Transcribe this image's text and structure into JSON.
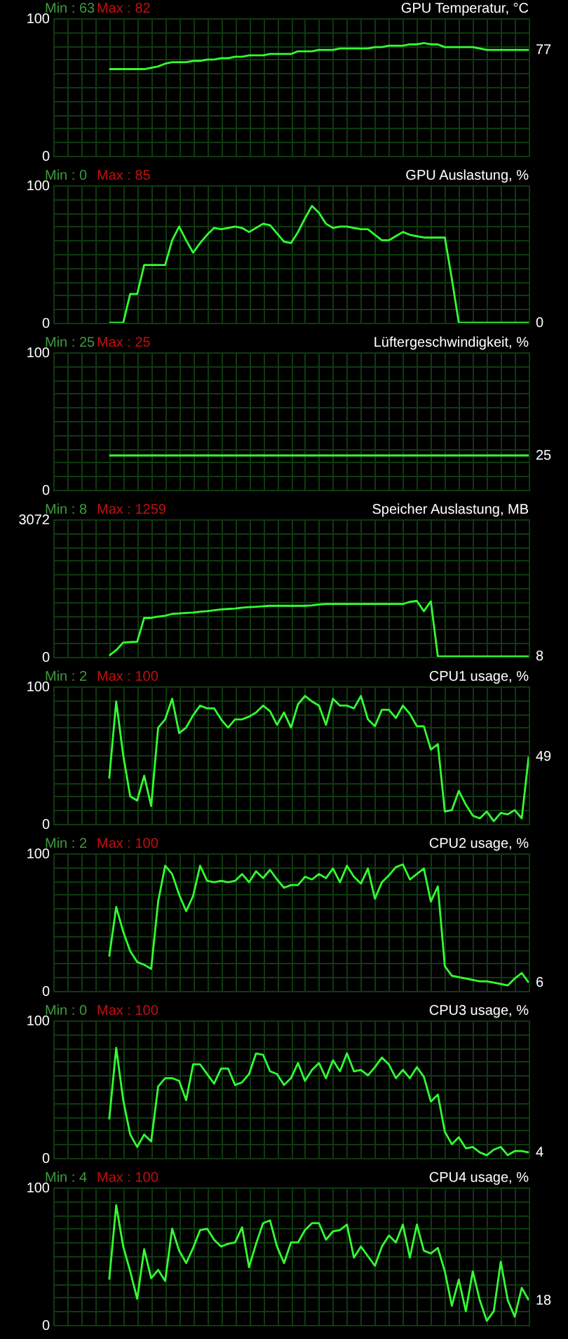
{
  "chart_data": [
    {
      "type": "line",
      "title": "GPU Temperatur, °C",
      "annotations": [
        "Min : 63",
        "Max : 82",
        "77"
      ],
      "tick_labels": "y",
      "grid": true,
      "ylim": [
        0,
        100
      ],
      "yticks": [
        0,
        {
          "value": 10,
          "label": null
        },
        {
          "value": 20,
          "label": null
        },
        {
          "value": 30,
          "label": null
        },
        {
          "value": 40,
          "label": null
        },
        {
          "value": 50,
          "label": null
        },
        {
          "value": 60,
          "label": null
        },
        {
          "value": 70,
          "label": null
        },
        {
          "value": 80,
          "label": null
        },
        {
          "value": 90,
          "label": null
        },
        100
      ],
      "categories": [
        null,
        null,
        null,
        null,
        null,
        null,
        null,
        null,
        null,
        null,
        null,
        null,
        null,
        null,
        null,
        null,
        null,
        null,
        null,
        null,
        null,
        null,
        null,
        null,
        null,
        null,
        null,
        null,
        null,
        null,
        null,
        null,
        null,
        null,
        null,
        null,
        null,
        null,
        null,
        null,
        null,
        null,
        null,
        null,
        null,
        null,
        null,
        null,
        null,
        null,
        null,
        null,
        null,
        null,
        null,
        null,
        null,
        null,
        null,
        null,
        null,
        null,
        null,
        null,
        null,
        null,
        null,
        null,
        null
      ],
      "series": [
        {
          "color": "#33ff33",
          "values": [
            null,
            null,
            null,
            null,
            null,
            null,
            null,
            null,
            63,
            63,
            63,
            63,
            63,
            63,
            64,
            65,
            67,
            68,
            68,
            68,
            69,
            69,
            70,
            70,
            71,
            71,
            72,
            72,
            73,
            73,
            73,
            74,
            74,
            74,
            74,
            76,
            76,
            76,
            77,
            77,
            77,
            78,
            78,
            78,
            78,
            78,
            79,
            79,
            80,
            80,
            80,
            81,
            81,
            82,
            81,
            81,
            79,
            79,
            79,
            79,
            79,
            78,
            77,
            77,
            77,
            77,
            77,
            77,
            77
          ]
        }
      ]
    },
    {
      "type": "line",
      "title": "GPU Auslastung, %",
      "annotations": [
        "Min : 0",
        "Max : 85",
        "0"
      ],
      "tick_labels": "y",
      "grid": true,
      "ylim": [
        0,
        100
      ],
      "yticks": [
        0,
        {
          "value": 10,
          "label": null
        },
        {
          "value": 20,
          "label": null
        },
        {
          "value": 30,
          "label": null
        },
        {
          "value": 40,
          "label": null
        },
        {
          "value": 50,
          "label": null
        },
        {
          "value": 60,
          "label": null
        },
        {
          "value": 70,
          "label": null
        },
        {
          "value": 80,
          "label": null
        },
        {
          "value": 90,
          "label": null
        },
        100
      ],
      "categories": [
        null,
        null,
        null,
        null,
        null,
        null,
        null,
        null,
        null,
        null,
        null,
        null,
        null,
        null,
        null,
        null,
        null,
        null,
        null,
        null,
        null,
        null,
        null,
        null,
        null,
        null,
        null,
        null,
        null,
        null,
        null,
        null,
        null,
        null,
        null,
        null,
        null,
        null,
        null,
        null,
        null,
        null,
        null,
        null,
        null,
        null,
        null,
        null,
        null,
        null,
        null,
        null,
        null,
        null,
        null,
        null,
        null,
        null,
        null,
        null,
        null,
        null,
        null,
        null,
        null,
        null,
        null,
        null,
        null
      ],
      "series": [
        {
          "color": "#33ff33",
          "values": [
            null,
            null,
            null,
            null,
            null,
            null,
            null,
            null,
            0,
            0,
            0,
            21,
            21,
            42,
            42,
            42,
            42,
            60,
            70,
            60,
            51,
            58,
            64,
            69,
            68,
            69,
            70,
            69,
            66,
            69,
            72,
            71,
            65,
            59,
            58,
            66,
            76,
            85,
            80,
            72,
            69,
            70,
            70,
            69,
            68,
            68,
            64,
            60,
            60,
            63,
            66,
            64,
            63,
            62,
            62,
            62,
            62,
            32,
            0,
            0,
            0,
            0,
            0,
            0,
            0,
            0,
            0,
            0,
            0
          ]
        }
      ]
    },
    {
      "type": "line",
      "title": "Lüftergeschwindigkeit, %",
      "annotations": [
        "Min : 25",
        "Max : 25",
        "25"
      ],
      "tick_labels": "y",
      "grid": true,
      "ylim": [
        0,
        100
      ],
      "yticks": [
        0,
        {
          "value": 10,
          "label": null
        },
        {
          "value": 20,
          "label": null
        },
        {
          "value": 30,
          "label": null
        },
        {
          "value": 40,
          "label": null
        },
        {
          "value": 50,
          "label": null
        },
        {
          "value": 60,
          "label": null
        },
        {
          "value": 70,
          "label": null
        },
        {
          "value": 80,
          "label": null
        },
        {
          "value": 90,
          "label": null
        },
        100
      ],
      "categories": [
        null,
        null,
        null,
        null,
        null,
        null,
        null,
        null,
        null,
        null,
        null,
        null,
        null,
        null,
        null,
        null,
        null,
        null,
        null,
        null,
        null,
        null,
        null,
        null,
        null,
        null,
        null,
        null,
        null,
        null,
        null,
        null,
        null,
        null,
        null,
        null,
        null,
        null,
        null,
        null,
        null,
        null,
        null,
        null,
        null,
        null,
        null,
        null,
        null,
        null,
        null,
        null,
        null,
        null,
        null,
        null,
        null,
        null,
        null,
        null,
        null,
        null,
        null,
        null,
        null,
        null,
        null,
        null,
        null
      ],
      "series": [
        {
          "color": "#33ff33",
          "values": [
            null,
            null,
            null,
            null,
            null,
            null,
            null,
            null,
            25,
            25,
            25,
            25,
            25,
            25,
            25,
            25,
            25,
            25,
            25,
            25,
            25,
            25,
            25,
            25,
            25,
            25,
            25,
            25,
            25,
            25,
            25,
            25,
            25,
            25,
            25,
            25,
            25,
            25,
            25,
            25,
            25,
            25,
            25,
            25,
            25,
            25,
            25,
            25,
            25,
            25,
            25,
            25,
            25,
            25,
            25,
            25,
            25,
            25,
            25,
            25,
            25,
            25,
            25,
            25,
            25,
            25,
            25,
            25,
            25
          ]
        }
      ]
    },
    {
      "type": "line",
      "title": "Speicher Auslastung, MB",
      "annotations": [
        "Min : 8",
        "Max : 1259",
        "8"
      ],
      "tick_labels": "y",
      "grid": true,
      "ylim": [
        0,
        3072
      ],
      "yticks": [
        0,
        {
          "value": 307.2,
          "label": null
        },
        {
          "value": 614.4,
          "label": null
        },
        {
          "value": 921.6,
          "label": null
        },
        {
          "value": 1228.8,
          "label": null
        },
        {
          "value": 1536,
          "label": null
        },
        {
          "value": 1843.2,
          "label": null
        },
        {
          "value": 2150.4,
          "label": null
        },
        {
          "value": 2457.6,
          "label": null
        },
        {
          "value": 2764.8,
          "label": null
        },
        3072
      ],
      "categories": [
        null,
        null,
        null,
        null,
        null,
        null,
        null,
        null,
        null,
        null,
        null,
        null,
        null,
        null,
        null,
        null,
        null,
        null,
        null,
        null,
        null,
        null,
        null,
        null,
        null,
        null,
        null,
        null,
        null,
        null,
        null,
        null,
        null,
        null,
        null,
        null,
        null,
        null,
        null,
        null,
        null,
        null,
        null,
        null,
        null,
        null,
        null,
        null,
        null,
        null,
        null,
        null,
        null,
        null,
        null,
        null,
        null,
        null,
        null,
        null,
        null,
        null,
        null,
        null,
        null,
        null,
        null,
        null,
        null
      ],
      "series": [
        {
          "color": "#33ff33",
          "values": [
            null,
            null,
            null,
            null,
            null,
            null,
            null,
            null,
            30,
            150,
            320,
            330,
            340,
            870,
            870,
            900,
            920,
            960,
            970,
            980,
            990,
            1010,
            1020,
            1040,
            1060,
            1070,
            1080,
            1100,
            1110,
            1120,
            1130,
            1140,
            1140,
            1140,
            1140,
            1140,
            1140,
            1150,
            1170,
            1180,
            1180,
            1180,
            1180,
            1180,
            1180,
            1180,
            1180,
            1180,
            1180,
            1180,
            1180,
            1230,
            1250,
            1020,
            1240,
            8,
            8,
            8,
            8,
            8,
            8,
            8,
            8,
            8,
            8,
            8,
            8,
            8,
            8
          ]
        }
      ]
    },
    {
      "type": "line",
      "title": "CPU1 usage, %",
      "annotations": [
        "Min : 2",
        "Max : 100",
        "49"
      ],
      "tick_labels": "y",
      "grid": true,
      "ylim": [
        0,
        100
      ],
      "yticks": [
        0,
        {
          "value": 10,
          "label": null
        },
        {
          "value": 20,
          "label": null
        },
        {
          "value": 30,
          "label": null
        },
        {
          "value": 40,
          "label": null
        },
        {
          "value": 50,
          "label": null
        },
        {
          "value": 60,
          "label": null
        },
        {
          "value": 70,
          "label": null
        },
        {
          "value": 80,
          "label": null
        },
        {
          "value": 90,
          "label": null
        },
        100
      ],
      "categories": [
        null,
        null,
        null,
        null,
        null,
        null,
        null,
        null,
        null,
        null,
        null,
        null,
        null,
        null,
        null,
        null,
        null,
        null,
        null,
        null,
        null,
        null,
        null,
        null,
        null,
        null,
        null,
        null,
        null,
        null,
        null,
        null,
        null,
        null,
        null,
        null,
        null,
        null,
        null,
        null,
        null,
        null,
        null,
        null,
        null,
        null,
        null,
        null,
        null,
        null,
        null,
        null,
        null,
        null,
        null,
        null,
        null,
        null,
        null,
        null,
        null,
        null,
        null,
        null,
        null,
        null,
        null,
        null,
        null
      ],
      "series": [
        {
          "color": "#33ff33",
          "values": [
            null,
            null,
            null,
            null,
            null,
            null,
            null,
            null,
            33,
            89,
            50,
            20,
            17,
            35,
            13,
            70,
            76,
            91,
            66,
            70,
            79,
            86,
            84,
            84,
            76,
            70,
            76,
            76,
            78,
            81,
            86,
            82,
            72,
            81,
            70,
            87,
            93,
            89,
            86,
            72,
            91,
            86,
            86,
            84,
            93,
            76,
            71,
            83,
            83,
            77,
            86,
            80,
            71,
            71,
            54,
            58,
            9,
            10,
            24,
            14,
            6,
            4,
            9,
            2,
            8,
            7,
            10,
            4,
            49
          ]
        }
      ]
    },
    {
      "type": "line",
      "title": "CPU2 usage, %",
      "annotations": [
        "Min : 2",
        "Max : 100",
        "6"
      ],
      "tick_labels": "y",
      "grid": true,
      "ylim": [
        0,
        100
      ],
      "yticks": [
        0,
        {
          "value": 10,
          "label": null
        },
        {
          "value": 20,
          "label": null
        },
        {
          "value": 30,
          "label": null
        },
        {
          "value": 40,
          "label": null
        },
        {
          "value": 50,
          "label": null
        },
        {
          "value": 60,
          "label": null
        },
        {
          "value": 70,
          "label": null
        },
        {
          "value": 80,
          "label": null
        },
        {
          "value": 90,
          "label": null
        },
        100
      ],
      "categories": [
        null,
        null,
        null,
        null,
        null,
        null,
        null,
        null,
        null,
        null,
        null,
        null,
        null,
        null,
        null,
        null,
        null,
        null,
        null,
        null,
        null,
        null,
        null,
        null,
        null,
        null,
        null,
        null,
        null,
        null,
        null,
        null,
        null,
        null,
        null,
        null,
        null,
        null,
        null,
        null,
        null,
        null,
        null,
        null,
        null,
        null,
        null,
        null,
        null,
        null,
        null,
        null,
        null,
        null,
        null,
        null,
        null,
        null,
        null,
        null,
        null,
        null,
        null,
        null,
        null,
        null,
        null,
        null,
        null
      ],
      "series": [
        {
          "color": "#33ff33",
          "values": [
            null,
            null,
            null,
            null,
            null,
            null,
            null,
            null,
            25,
            61,
            43,
            29,
            21,
            19,
            16,
            65,
            91,
            85,
            70,
            58,
            69,
            91,
            80,
            79,
            80,
            79,
            80,
            85,
            79,
            87,
            82,
            88,
            81,
            75,
            77,
            77,
            83,
            81,
            85,
            82,
            89,
            79,
            91,
            83,
            78,
            89,
            67,
            79,
            84,
            90,
            92,
            81,
            85,
            89,
            65,
            76,
            18,
            11,
            10,
            9,
            8,
            7,
            7,
            6,
            5,
            4,
            9,
            13,
            6
          ]
        }
      ]
    },
    {
      "type": "line",
      "title": "CPU3 usage, %",
      "annotations": [
        "Min : 0",
        "Max : 100",
        "4"
      ],
      "tick_labels": "y",
      "grid": true,
      "ylim": [
        0,
        100
      ],
      "yticks": [
        0,
        {
          "value": 10,
          "label": null
        },
        {
          "value": 20,
          "label": null
        },
        {
          "value": 30,
          "label": null
        },
        {
          "value": 40,
          "label": null
        },
        {
          "value": 50,
          "label": null
        },
        {
          "value": 60,
          "label": null
        },
        {
          "value": 70,
          "label": null
        },
        {
          "value": 80,
          "label": null
        },
        {
          "value": 90,
          "label": null
        },
        100
      ],
      "categories": [
        null,
        null,
        null,
        null,
        null,
        null,
        null,
        null,
        null,
        null,
        null,
        null,
        null,
        null,
        null,
        null,
        null,
        null,
        null,
        null,
        null,
        null,
        null,
        null,
        null,
        null,
        null,
        null,
        null,
        null,
        null,
        null,
        null,
        null,
        null,
        null,
        null,
        null,
        null,
        null,
        null,
        null,
        null,
        null,
        null,
        null,
        null,
        null,
        null,
        null,
        null,
        null,
        null,
        null,
        null,
        null,
        null,
        null,
        null,
        null,
        null,
        null,
        null,
        null,
        null,
        null,
        null,
        null,
        null
      ],
      "series": [
        {
          "color": "#33ff33",
          "values": [
            null,
            null,
            null,
            null,
            null,
            null,
            null,
            null,
            28,
            80,
            42,
            17,
            8,
            17,
            12,
            52,
            58,
            58,
            56,
            42,
            68,
            68,
            61,
            54,
            65,
            65,
            53,
            55,
            61,
            76,
            75,
            63,
            61,
            53,
            58,
            69,
            56,
            64,
            69,
            58,
            71,
            63,
            76,
            63,
            64,
            60,
            66,
            73,
            68,
            58,
            64,
            58,
            66,
            59,
            41,
            46,
            19,
            10,
            15,
            7,
            8,
            4,
            2,
            6,
            8,
            2,
            5,
            5,
            4
          ]
        }
      ]
    },
    {
      "type": "line",
      "title": "CPU4 usage, %",
      "annotations": [
        "Min : 4",
        "Max : 100",
        "18"
      ],
      "tick_labels": "y",
      "grid": true,
      "ylim": [
        0,
        100
      ],
      "yticks": [
        0,
        {
          "value": 10,
          "label": null
        },
        {
          "value": 20,
          "label": null
        },
        {
          "value": 30,
          "label": null
        },
        {
          "value": 40,
          "label": null
        },
        {
          "value": 50,
          "label": null
        },
        {
          "value": 60,
          "label": null
        },
        {
          "value": 70,
          "label": null
        },
        {
          "value": 80,
          "label": null
        },
        {
          "value": 90,
          "label": null
        },
        100
      ],
      "categories": [
        null,
        null,
        null,
        null,
        null,
        null,
        null,
        null,
        null,
        null,
        null,
        null,
        null,
        null,
        null,
        null,
        null,
        null,
        null,
        null,
        null,
        null,
        null,
        null,
        null,
        null,
        null,
        null,
        null,
        null,
        null,
        null,
        null,
        null,
        null,
        null,
        null,
        null,
        null,
        null,
        null,
        null,
        null,
        null,
        null,
        null,
        null,
        null,
        null,
        null,
        null,
        null,
        null,
        null,
        null,
        null,
        null,
        null,
        null,
        null,
        null,
        null,
        null,
        null,
        null,
        null,
        null,
        null,
        null
      ],
      "series": [
        {
          "color": "#33ff33",
          "values": [
            null,
            null,
            null,
            null,
            null,
            null,
            null,
            null,
            33,
            87,
            57,
            39,
            19,
            55,
            34,
            40,
            32,
            70,
            54,
            45,
            56,
            69,
            70,
            62,
            57,
            59,
            60,
            71,
            42,
            59,
            74,
            76,
            57,
            45,
            60,
            60,
            69,
            74,
            74,
            62,
            68,
            69,
            73,
            49,
            57,
            50,
            43,
            57,
            65,
            60,
            73,
            49,
            73,
            54,
            52,
            56,
            39,
            14,
            33,
            10,
            39,
            18,
            3,
            10,
            46,
            18,
            6,
            27,
            18
          ]
        }
      ]
    }
  ]
}
